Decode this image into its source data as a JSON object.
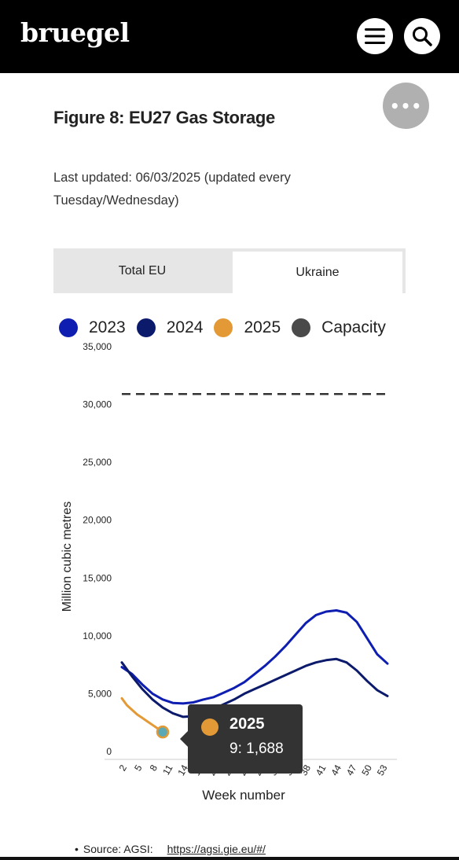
{
  "header": {
    "logo": "bruegel",
    "menu_icon": "hamburger-icon",
    "search_icon": "search-icon",
    "more_label": "•••"
  },
  "figure": {
    "title": "Figure 8: EU27 Gas Storage",
    "updated": "Last updated: 06/03/2025  (updated every Tuesday/Wednesday)"
  },
  "tabs": [
    {
      "label": "Total EU",
      "active": false
    },
    {
      "label": "Ukraine",
      "active": true
    }
  ],
  "legend": [
    {
      "label": "2023",
      "color": "#0e1eb0"
    },
    {
      "label": "2024",
      "color": "#0b1a6b"
    },
    {
      "label": "2025",
      "color": "#e39a36"
    },
    {
      "label": "Capacity",
      "color": "#555555"
    }
  ],
  "chart_data": {
    "type": "line",
    "ylabel": "Million cubic metres",
    "xlabel": "Week number",
    "ylim": [
      0,
      35000
    ],
    "yticks": [
      "0",
      "5,000",
      "10,000",
      "15,000",
      "20,000",
      "25,000",
      "30,000",
      "35,000"
    ],
    "xlim": [
      1,
      53
    ],
    "xticks": [
      {
        "week": 2,
        "label": "2"
      },
      {
        "week": 5,
        "label": "5"
      },
      {
        "week": 8,
        "label": "8"
      },
      {
        "week": 11,
        "label": "11"
      },
      {
        "week": 14,
        "label": "14"
      },
      {
        "week": 17,
        "label": "17"
      },
      {
        "week": 20,
        "label": "20"
      },
      {
        "week": 23,
        "label": "23"
      },
      {
        "week": 26,
        "label": "26"
      },
      {
        "week": 29,
        "label": "29"
      },
      {
        "week": 32,
        "label": "32"
      },
      {
        "week": 35,
        "label": "35"
      },
      {
        "week": 38,
        "label": "38"
      },
      {
        "week": 41,
        "label": "41"
      },
      {
        "week": 44,
        "label": "44"
      },
      {
        "week": 47,
        "label": "47"
      },
      {
        "week": 50,
        "label": "50"
      },
      {
        "week": 53,
        "label": "53"
      }
    ],
    "series": [
      {
        "name": "2023",
        "color": "#0e1eb0",
        "x": [
          1,
          3,
          5,
          7,
          9,
          11,
          13,
          15,
          17,
          19,
          21,
          23,
          25,
          27,
          29,
          31,
          33,
          35,
          37,
          39,
          41,
          43,
          45,
          47,
          49,
          51,
          53
        ],
        "y": [
          7300,
          6700,
          5800,
          5000,
          4500,
          4200,
          4150,
          4250,
          4500,
          4700,
          5100,
          5500,
          6000,
          6700,
          7400,
          8200,
          9100,
          10100,
          11100,
          11800,
          12100,
          12200,
          12000,
          11200,
          9800,
          8400,
          7600
        ]
      },
      {
        "name": "2024",
        "color": "#0b1a6b",
        "x": [
          1,
          3,
          5,
          7,
          9,
          11,
          13,
          15,
          17,
          19,
          21,
          23,
          25,
          27,
          29,
          31,
          33,
          35,
          37,
          39,
          41,
          43,
          45,
          47,
          49,
          51,
          53
        ],
        "y": [
          7700,
          6500,
          5400,
          4500,
          3800,
          3300,
          3000,
          3050,
          3300,
          3700,
          4100,
          4500,
          5000,
          5400,
          5800,
          6200,
          6600,
          7000,
          7400,
          7700,
          7900,
          8000,
          7700,
          7000,
          6100,
          5300,
          4800
        ]
      },
      {
        "name": "2025",
        "color": "#e39a36",
        "x": [
          1,
          2,
          3,
          4,
          5,
          6,
          7,
          8,
          9
        ],
        "y": [
          4600,
          4000,
          3600,
          3200,
          2900,
          2600,
          2300,
          2000,
          1688
        ]
      },
      {
        "name": "Capacity",
        "color": "#555555",
        "x": [
          1,
          53
        ],
        "y": [
          30900,
          30900
        ]
      }
    ],
    "tooltip": {
      "series": "2025",
      "text": "9: 1,688",
      "week": 9,
      "value": 1688
    }
  },
  "source": {
    "label": "Source: AGSI:",
    "link": "https://agsi.gie.eu/#/"
  }
}
